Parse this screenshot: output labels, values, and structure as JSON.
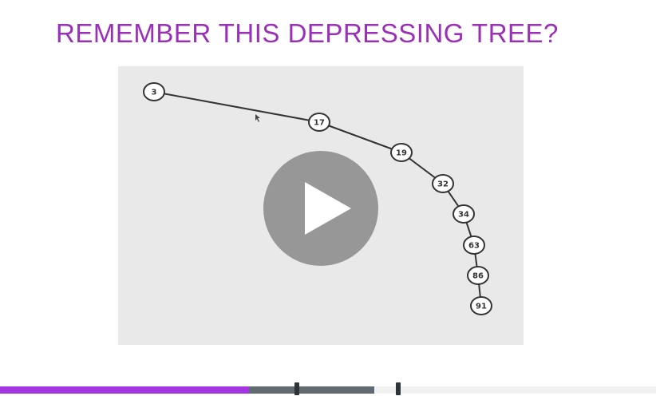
{
  "slide": {
    "title": "REMEMBER THIS DEPRESSING TREE?",
    "title_color": "#9b30b8"
  },
  "tree": {
    "nodes": [
      {
        "label": "3"
      },
      {
        "label": "17"
      },
      {
        "label": "19"
      },
      {
        "label": "32"
      },
      {
        "label": "34"
      },
      {
        "label": "63"
      },
      {
        "label": "86"
      },
      {
        "label": "91"
      }
    ],
    "line_color": "#333333"
  },
  "player": {
    "play_icon": "play-icon",
    "progress_played_fraction": 0.38,
    "buffered_fraction": 0.57,
    "accent_color": "#a236e0"
  }
}
